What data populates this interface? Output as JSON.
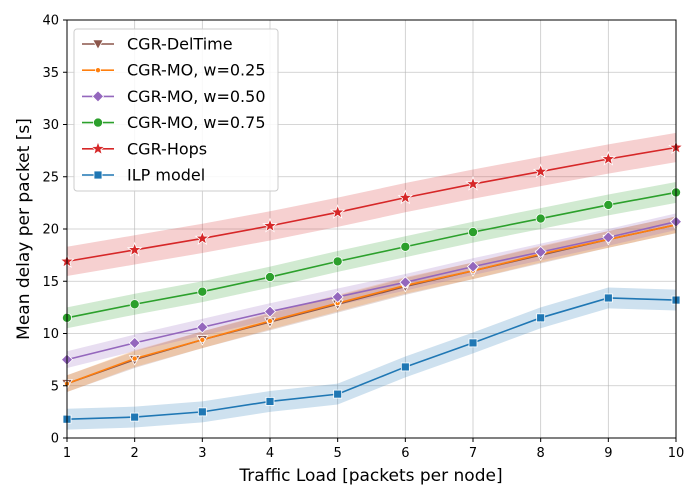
{
  "chart_data": {
    "type": "line",
    "title": "",
    "xlabel": "Traffic Load [packets per node]",
    "ylabel": "Mean delay per packet [s]",
    "xlim": [
      1,
      10
    ],
    "ylim": [
      0,
      40
    ],
    "grid": true,
    "legend_position": "top-left",
    "x": [
      1,
      2,
      3,
      4,
      5,
      6,
      7,
      8,
      9,
      10
    ],
    "x_ticks": [
      "1",
      "2",
      "3",
      "4",
      "5",
      "6",
      "7",
      "8",
      "9",
      "10"
    ],
    "y_ticks": [
      "0",
      "5",
      "10",
      "15",
      "20",
      "25",
      "30",
      "35",
      "40"
    ],
    "series": [
      {
        "name": "CGR-DelTime",
        "color": "#8c564b",
        "marker": "triangle-down",
        "values": [
          5.2,
          7.5,
          9.4,
          11.1,
          12.8,
          14.5,
          16.0,
          17.5,
          19.0,
          20.4
        ],
        "band": 0.8
      },
      {
        "name": "CGR-MO, w=0.25",
        "color": "#ff7f0e",
        "marker": "point",
        "values": [
          5.2,
          7.6,
          9.4,
          11.2,
          12.9,
          14.6,
          16.0,
          17.6,
          19.0,
          20.4
        ],
        "band": 0.8
      },
      {
        "name": "CGR-MO, w=0.50",
        "color": "#9467bd",
        "marker": "diamond",
        "values": [
          7.5,
          9.1,
          10.6,
          12.1,
          13.5,
          14.9,
          16.4,
          17.8,
          19.2,
          20.7
        ],
        "band": 0.8
      },
      {
        "name": "CGR-MO, w=0.75",
        "color": "#2ca02c",
        "marker": "circle",
        "values": [
          11.5,
          12.8,
          14.0,
          15.4,
          16.9,
          18.3,
          19.7,
          21.0,
          22.3,
          23.5
        ],
        "band": 1.0
      },
      {
        "name": "CGR-Hops",
        "color": "#d62728",
        "marker": "star",
        "values": [
          16.9,
          18.0,
          19.1,
          20.3,
          21.6,
          23.0,
          24.3,
          25.5,
          26.7,
          27.8
        ],
        "band": 1.4
      },
      {
        "name": "ILP model",
        "color": "#1f77b4",
        "marker": "square",
        "values": [
          1.8,
          2.0,
          2.5,
          3.5,
          4.2,
          6.8,
          9.1,
          11.5,
          13.4,
          13.2
        ],
        "band": 1.0
      }
    ]
  }
}
